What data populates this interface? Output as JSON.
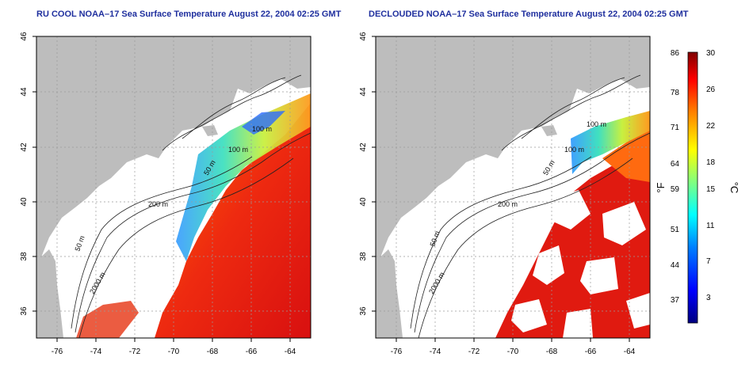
{
  "maps": [
    {
      "title": "RU COOL NOAA–17 Sea Surface Temperature August 22, 2004 02:25 GMT",
      "x_ticks": [
        "-76",
        "-74",
        "-72",
        "-70",
        "-68",
        "-66",
        "-64"
      ],
      "y_ticks": [
        "46",
        "44",
        "42",
        "40",
        "38",
        "36"
      ],
      "contour_labels": [
        "100 m",
        "100 m",
        "50 m",
        "200 m",
        "50 m",
        "2000 m"
      ]
    },
    {
      "title": "DECLOUDED NOAA–17 Sea Surface Temperature August 22, 2004 02:25 GMT",
      "x_ticks": [
        "-76",
        "-74",
        "-72",
        "-70",
        "-68",
        "-66",
        "-64"
      ],
      "y_ticks": [
        "46",
        "44",
        "42",
        "40",
        "38",
        "36"
      ],
      "contour_labels": [
        "100 m",
        "100 m",
        "50 m",
        "200 m",
        "50 m",
        "2000 m"
      ]
    }
  ],
  "colorbar": {
    "fahrenheit_ticks": [
      "86",
      "78",
      "71",
      "64",
      "59",
      "51",
      "44",
      "37"
    ],
    "celsius_ticks": [
      "30",
      "26",
      "22",
      "18",
      "15",
      "11",
      "7",
      "3"
    ],
    "left_unit": "°F",
    "right_unit": "°C",
    "colors": [
      "#00007f",
      "#0000ff",
      "#0080ff",
      "#00ffff",
      "#80ff80",
      "#ffff00",
      "#ff8000",
      "#ff0000",
      "#7f0000"
    ]
  },
  "colors": {
    "land": "#bdbdbd",
    "ocean_nodata": "#ffffff",
    "title": "#1f2f9e"
  }
}
